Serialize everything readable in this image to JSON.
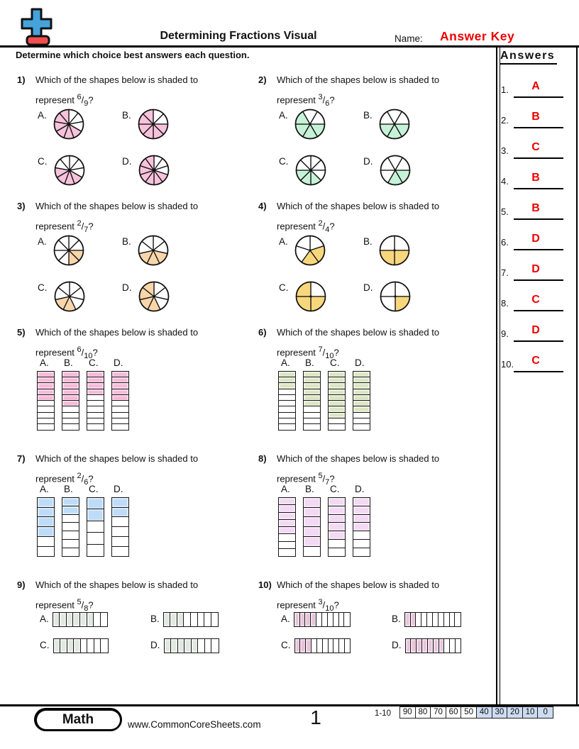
{
  "page": {
    "title": "Determining Fractions Visual",
    "name_label": "Name:",
    "name_value": "Answer Key",
    "instruction": "Determine which choice best answers each question.",
    "answers_title": "Answers"
  },
  "colors": {
    "answer_red": "#ee0000",
    "logo_blue": "#45a3dc",
    "logo_red": "#f24e4e",
    "score_highlight": "#ccdcf1"
  },
  "questions": [
    {
      "num": "1)",
      "line1": "Which of the shapes below is shaded to",
      "line2_prefix": "represent",
      "numerator": "6",
      "denominator": "9",
      "suffix": "?",
      "kind": "pie",
      "color": "#f8c2dc",
      "options": [
        {
          "label": "A.",
          "slices": 9,
          "shaded": [
            3,
            4,
            5,
            6,
            7,
            8
          ]
        },
        {
          "label": "B.",
          "slices": 8,
          "shaded": [
            2,
            3,
            4,
            5,
            6,
            7
          ]
        },
        {
          "label": "C.",
          "slices": 9,
          "shaded": [
            3,
            4,
            5,
            6
          ]
        },
        {
          "label": "D.",
          "slices": 10,
          "shaded": [
            3,
            4,
            5,
            6,
            7,
            8,
            9
          ]
        }
      ]
    },
    {
      "num": "2)",
      "line1": "Which of the shapes below is shaded to",
      "line2_prefix": "represent",
      "numerator": "3",
      "denominator": "6",
      "suffix": "?",
      "kind": "pie",
      "color": "#c6f2d8",
      "options": [
        {
          "label": "A.",
          "slices": 6,
          "shaded": [
            0,
            1,
            2,
            3
          ]
        },
        {
          "label": "B.",
          "slices": 6,
          "shaded": [
            0,
            1,
            2
          ]
        },
        {
          "label": "C.",
          "slices": 8,
          "shaded": [
            3,
            4,
            5
          ]
        },
        {
          "label": "D.",
          "slices": 6,
          "shaded": [
            0,
            1
          ]
        }
      ]
    },
    {
      "num": "3)",
      "line1": "Which of the shapes below is shaded to",
      "line2_prefix": "represent",
      "numerator": "2",
      "denominator": "7",
      "suffix": "?",
      "kind": "pie",
      "color": "#f9d6aa",
      "options": [
        {
          "label": "A.",
          "slices": 8,
          "shaded": [
            2,
            3
          ]
        },
        {
          "label": "B.",
          "slices": 7,
          "shaded": [
            2,
            3,
            4
          ]
        },
        {
          "label": "C.",
          "slices": 7,
          "shaded": [
            3,
            4
          ]
        },
        {
          "label": "D.",
          "slices": 7,
          "shaded": [
            3,
            4,
            5,
            6
          ]
        }
      ]
    },
    {
      "num": "4)",
      "line1": "Which of the shapes below is shaded to",
      "line2_prefix": "represent",
      "numerator": "2",
      "denominator": "4",
      "suffix": "?",
      "kind": "pie",
      "color": "#f8d77c",
      "options": [
        {
          "label": "A.",
          "slices": 5,
          "shaded": [
            1,
            2
          ]
        },
        {
          "label": "B.",
          "slices": 4,
          "shaded": [
            1,
            2
          ]
        },
        {
          "label": "C.",
          "slices": 4,
          "shaded": [
            1,
            2,
            3
          ]
        },
        {
          "label": "D.",
          "slices": 4,
          "shaded": [
            1
          ]
        }
      ]
    },
    {
      "num": "5)",
      "line1": "Which of the shapes below is shaded to",
      "line2_prefix": "represent",
      "numerator": "6",
      "denominator": "10",
      "suffix": "?",
      "kind": "stack",
      "color": "#f8b9d8",
      "options": [
        {
          "label": "A.",
          "cells": 10,
          "shaded": 5
        },
        {
          "label": "B.",
          "cells": 10,
          "shaded": 6
        },
        {
          "label": "C.",
          "cells": 10,
          "shaded": 4
        },
        {
          "label": "D.",
          "cells": 10,
          "shaded": 5
        }
      ]
    },
    {
      "num": "6)",
      "line1": "Which of the shapes below is shaded to",
      "line2_prefix": "represent",
      "numerator": "7",
      "denominator": "10",
      "suffix": "?",
      "kind": "stack",
      "color": "#dbe5c3",
      "options": [
        {
          "label": "A.",
          "cells": 10,
          "shaded": 3
        },
        {
          "label": "B.",
          "cells": 10,
          "shaded": 6
        },
        {
          "label": "C.",
          "cells": 10,
          "shaded": 8
        },
        {
          "label": "D.",
          "cells": 10,
          "shaded": 7
        }
      ]
    },
    {
      "num": "7)",
      "line1": "Which of the shapes below is shaded to",
      "line2_prefix": "represent",
      "numerator": "2",
      "denominator": "6",
      "suffix": "?",
      "kind": "stack",
      "color": "#bedcf8",
      "options": [
        {
          "label": "A.",
          "cells": 6,
          "shaded": 4
        },
        {
          "label": "B.",
          "cells": 7,
          "shaded": 2
        },
        {
          "label": "C.",
          "cells": 5,
          "shaded": 2
        },
        {
          "label": "D.",
          "cells": 6,
          "shaded": 2
        }
      ]
    },
    {
      "num": "8)",
      "line1": "Which of the shapes below is shaded to",
      "line2_prefix": "represent",
      "numerator": "5",
      "denominator": "7",
      "suffix": "?",
      "kind": "stack",
      "color": "#f3d9f3",
      "options": [
        {
          "label": "A.",
          "cells": 8,
          "shaded": 5
        },
        {
          "label": "B.",
          "cells": 6,
          "shaded": 5
        },
        {
          "label": "C.",
          "cells": 7,
          "shaded": 5
        },
        {
          "label": "D.",
          "cells": 7,
          "shaded": 4
        }
      ]
    },
    {
      "num": "9)",
      "line1": "Which of the shapes below is shaded to",
      "line2_prefix": "represent",
      "numerator": "5",
      "denominator": "8",
      "suffix": "?",
      "kind": "bar",
      "color": "#e1e8e1",
      "options": [
        {
          "label": "A.",
          "cells": 8,
          "shaded": 6
        },
        {
          "label": "B.",
          "cells": 8,
          "shaded": 3
        },
        {
          "label": "C.",
          "cells": 8,
          "shaded": 4
        },
        {
          "label": "D.",
          "cells": 8,
          "shaded": 5
        }
      ]
    },
    {
      "num": "10)",
      "line1": "Which of the shapes below is shaded to",
      "line2_prefix": "represent",
      "numerator": "3",
      "denominator": "10",
      "suffix": "?",
      "kind": "bar",
      "color": "#e7c3da",
      "options": [
        {
          "label": "A.",
          "cells": 10,
          "shaded": 4
        },
        {
          "label": "B.",
          "cells": 10,
          "shaded": 2
        },
        {
          "label": "C.",
          "cells": 10,
          "shaded": 3
        },
        {
          "label": "D.",
          "cells": 10,
          "shaded": 7
        }
      ]
    }
  ],
  "answers": [
    {
      "num": "1.",
      "value": "A"
    },
    {
      "num": "2.",
      "value": "B"
    },
    {
      "num": "3.",
      "value": "C"
    },
    {
      "num": "4.",
      "value": "B"
    },
    {
      "num": "5.",
      "value": "B"
    },
    {
      "num": "6.",
      "value": "D"
    },
    {
      "num": "7.",
      "value": "D"
    },
    {
      "num": "8.",
      "value": "C"
    },
    {
      "num": "9.",
      "value": "D"
    },
    {
      "num": "10.",
      "value": "C"
    }
  ],
  "footer": {
    "badge": "Math",
    "website": "www.CommonCoreSheets.com",
    "page_number": "1",
    "score_label": "1-10",
    "score_values": [
      "90",
      "80",
      "70",
      "60",
      "50",
      "40",
      "30",
      "20",
      "10",
      "0"
    ],
    "score_highlight_start": 5
  }
}
